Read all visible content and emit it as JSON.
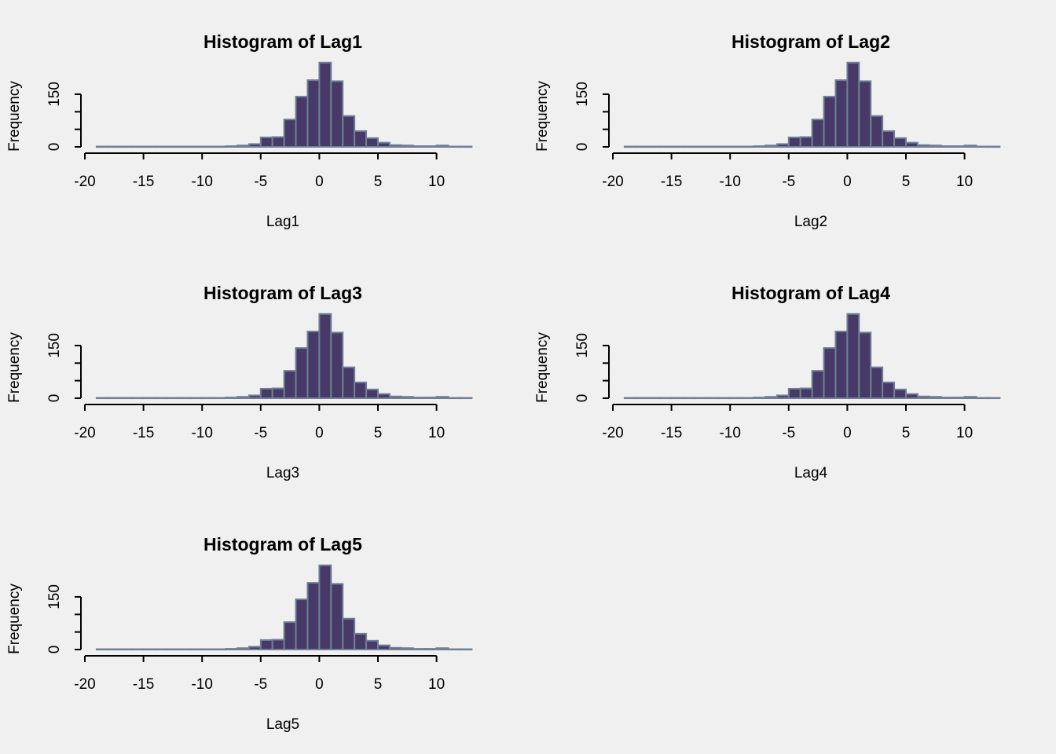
{
  "colors": {
    "background": "#f0f0f0",
    "bar_fill": "#483a68",
    "bar_border": "#6f7f95",
    "axis": "#000000"
  },
  "chart_data": [
    {
      "type": "bar",
      "title": "Histogram of Lag1",
      "xlabel": "Lag1",
      "ylabel": "Frequency",
      "xlim": [
        -20,
        13
      ],
      "xticks": [
        -20,
        -15,
        -10,
        -5,
        0,
        5,
        10
      ],
      "yticks": [
        0,
        150
      ],
      "ylim": [
        0,
        240
      ],
      "bin_width": 1,
      "bins_start": [
        -19,
        -18,
        -17,
        -16,
        -15,
        -14,
        -13,
        -12,
        -11,
        -10,
        -9,
        -8,
        -7,
        -6,
        -5,
        -4,
        -3,
        -2,
        -1,
        0,
        1,
        2,
        3,
        4,
        5,
        6,
        7,
        8,
        9,
        10,
        11,
        12
      ],
      "values": [
        1,
        1,
        1,
        1,
        1,
        1,
        1,
        1,
        1,
        1,
        1,
        2,
        4,
        8,
        27,
        28,
        78,
        143,
        190,
        240,
        187,
        88,
        45,
        25,
        12,
        5,
        4,
        2,
        2,
        4,
        1,
        1
      ]
    },
    {
      "type": "bar",
      "title": "Histogram of Lag2",
      "xlabel": "Lag2",
      "ylabel": "Frequency",
      "xlim": [
        -20,
        13
      ],
      "xticks": [
        -20,
        -15,
        -10,
        -5,
        0,
        5,
        10
      ],
      "yticks": [
        0,
        150
      ],
      "ylim": [
        0,
        240
      ],
      "bin_width": 1,
      "bins_start": [
        -19,
        -18,
        -17,
        -16,
        -15,
        -14,
        -13,
        -12,
        -11,
        -10,
        -9,
        -8,
        -7,
        -6,
        -5,
        -4,
        -3,
        -2,
        -1,
        0,
        1,
        2,
        3,
        4,
        5,
        6,
        7,
        8,
        9,
        10,
        11,
        12
      ],
      "values": [
        1,
        1,
        1,
        1,
        1,
        1,
        1,
        1,
        1,
        1,
        1,
        2,
        4,
        8,
        27,
        28,
        78,
        143,
        190,
        240,
        187,
        88,
        45,
        25,
        12,
        5,
        4,
        2,
        2,
        4,
        1,
        1
      ]
    },
    {
      "type": "bar",
      "title": "Histogram of Lag3",
      "xlabel": "Lag3",
      "ylabel": "Frequency",
      "xlim": [
        -20,
        13
      ],
      "xticks": [
        -20,
        -15,
        -10,
        -5,
        0,
        5,
        10
      ],
      "yticks": [
        0,
        150
      ],
      "ylim": [
        0,
        240
      ],
      "bin_width": 1,
      "bins_start": [
        -19,
        -18,
        -17,
        -16,
        -15,
        -14,
        -13,
        -12,
        -11,
        -10,
        -9,
        -8,
        -7,
        -6,
        -5,
        -4,
        -3,
        -2,
        -1,
        0,
        1,
        2,
        3,
        4,
        5,
        6,
        7,
        8,
        9,
        10,
        11,
        12
      ],
      "values": [
        1,
        1,
        1,
        1,
        1,
        1,
        1,
        1,
        1,
        1,
        1,
        2,
        4,
        8,
        27,
        28,
        78,
        143,
        190,
        240,
        187,
        88,
        45,
        25,
        12,
        5,
        4,
        2,
        2,
        4,
        1,
        1
      ]
    },
    {
      "type": "bar",
      "title": "Histogram of Lag4",
      "xlabel": "Lag4",
      "ylabel": "Frequency",
      "xlim": [
        -20,
        13
      ],
      "xticks": [
        -20,
        -15,
        -10,
        -5,
        0,
        5,
        10
      ],
      "yticks": [
        0,
        150
      ],
      "ylim": [
        0,
        240
      ],
      "bin_width": 1,
      "bins_start": [
        -19,
        -18,
        -17,
        -16,
        -15,
        -14,
        -13,
        -12,
        -11,
        -10,
        -9,
        -8,
        -7,
        -6,
        -5,
        -4,
        -3,
        -2,
        -1,
        0,
        1,
        2,
        3,
        4,
        5,
        6,
        7,
        8,
        9,
        10,
        11,
        12
      ],
      "values": [
        1,
        1,
        1,
        1,
        1,
        1,
        1,
        1,
        1,
        1,
        1,
        2,
        4,
        8,
        27,
        28,
        78,
        143,
        190,
        240,
        187,
        88,
        45,
        25,
        12,
        5,
        4,
        2,
        2,
        4,
        1,
        1
      ]
    },
    {
      "type": "bar",
      "title": "Histogram of Lag5",
      "xlabel": "Lag5",
      "ylabel": "Frequency",
      "xlim": [
        -20,
        13
      ],
      "xticks": [
        -20,
        -15,
        -10,
        -5,
        0,
        5,
        10
      ],
      "yticks": [
        0,
        150
      ],
      "ylim": [
        0,
        240
      ],
      "bin_width": 1,
      "bins_start": [
        -19,
        -18,
        -17,
        -16,
        -15,
        -14,
        -13,
        -12,
        -11,
        -10,
        -9,
        -8,
        -7,
        -6,
        -5,
        -4,
        -3,
        -2,
        -1,
        0,
        1,
        2,
        3,
        4,
        5,
        6,
        7,
        8,
        9,
        10,
        11,
        12
      ],
      "values": [
        1,
        1,
        1,
        1,
        1,
        1,
        1,
        1,
        1,
        1,
        1,
        2,
        4,
        8,
        27,
        28,
        78,
        143,
        190,
        240,
        187,
        88,
        45,
        25,
        12,
        5,
        4,
        2,
        2,
        4,
        1,
        1
      ]
    }
  ]
}
